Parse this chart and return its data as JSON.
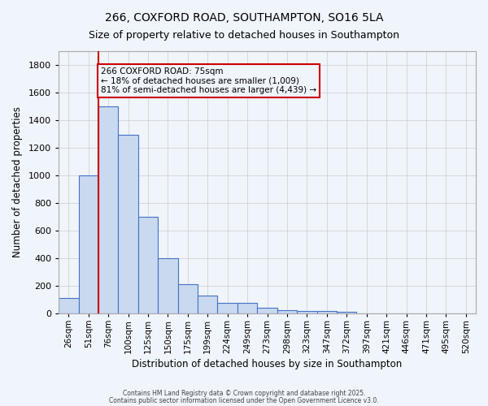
{
  "title1": "266, COXFORD ROAD, SOUTHAMPTON, SO16 5LA",
  "title2": "Size of property relative to detached houses in Southampton",
  "xlabel": "Distribution of detached houses by size in Southampton",
  "ylabel": "Number of detached properties",
  "categories": [
    "26sqm",
    "51sqm",
    "76sqm",
    "100sqm",
    "125sqm",
    "150sqm",
    "175sqm",
    "199sqm",
    "224sqm",
    "249sqm",
    "273sqm",
    "298sqm",
    "323sqm",
    "347sqm",
    "372sqm",
    "397sqm",
    "421sqm",
    "446sqm",
    "471sqm",
    "495sqm",
    "520sqm"
  ],
  "bar_values": [
    110,
    1000,
    1500,
    1290,
    700,
    400,
    210,
    130,
    75,
    75,
    40,
    25,
    15,
    15,
    10,
    0,
    0,
    0,
    0,
    0,
    0
  ],
  "bar_color": "#c9d9f0",
  "bar_edge_color": "#4472c4",
  "ylim": [
    0,
    1900
  ],
  "yticks": [
    0,
    200,
    400,
    600,
    800,
    1000,
    1200,
    1400,
    1600,
    1800
  ],
  "property_line_color": "#cc0000",
  "annotation_text": "266 COXFORD ROAD: 75sqm\n← 18% of detached houses are smaller (1,009)\n81% of semi-detached houses are larger (4,439) →",
  "background_color": "#f0f4fb",
  "grid_color": "#cccccc",
  "footnote1": "Contains HM Land Registry data © Crown copyright and database right 2025.",
  "footnote2": "Contains public sector information licensed under the Open Government Licence v3.0."
}
